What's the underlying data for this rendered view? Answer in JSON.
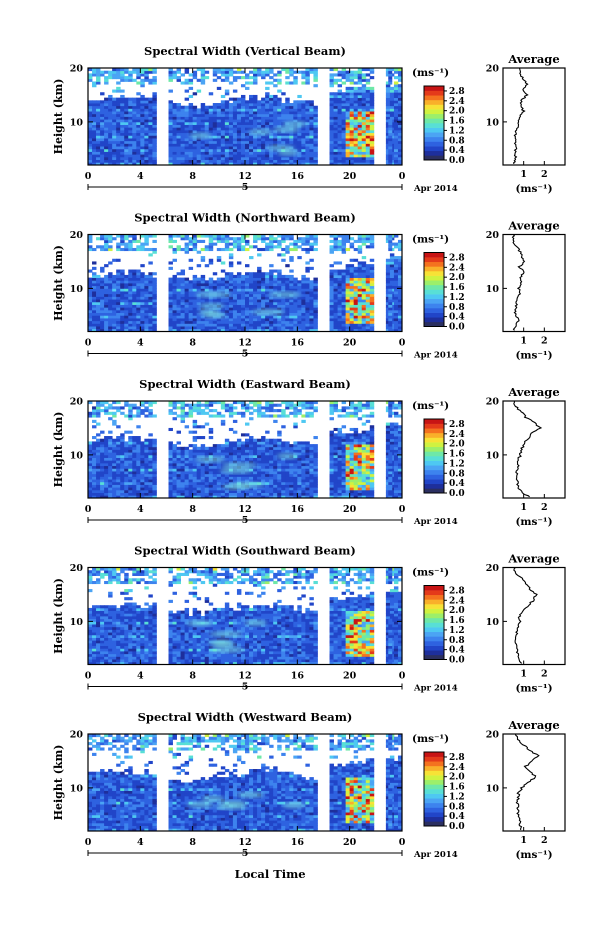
{
  "chart_data": {
    "type": "heatmap",
    "x_axis_label": "Local Time",
    "x_ticks": [
      "0",
      "4",
      "8",
      "12",
      "16",
      "20",
      "0"
    ],
    "date_day": "5",
    "date_month_year": "Apr 2014",
    "y_label": "Height (km)",
    "y_ticks": [
      "20",
      "10"
    ],
    "y_range_km": [
      2,
      20
    ],
    "x_range_hours": [
      0,
      24
    ],
    "colorbar": {
      "unit": "(ms⁻¹)",
      "ticks": [
        "2.8",
        "2.4",
        "2.0",
        "1.6",
        "1.2",
        "0.8",
        "0.4",
        "0.0"
      ],
      "range": [
        0,
        3.0
      ],
      "colors": [
        "#2b2f60",
        "#1e2f9c",
        "#2145c8",
        "#2e62e0",
        "#3d83ee",
        "#4ba4f4",
        "#4ec8f2",
        "#58dfd6",
        "#6ee8a8",
        "#9cef6a",
        "#d0f240",
        "#f7e236",
        "#f9b02a",
        "#f4721f",
        "#e43a1a",
        "#c81414"
      ]
    },
    "data_gaps_hours": [
      [
        5.3,
        6.0
      ],
      [
        17.6,
        18.2
      ],
      [
        22.0,
        22.6
      ]
    ],
    "average_title": "Average",
    "average_x_unit": "(ms⁻¹)",
    "panels": [
      {
        "title": "Spectral Width (Vertical Beam)",
        "avg_x_ticks": [
          "1",
          "2"
        ],
        "avg_profile": [
          [
            2.2,
            0.55
          ],
          [
            3,
            0.6
          ],
          [
            4,
            0.6
          ],
          [
            5,
            0.62
          ],
          [
            6,
            0.6
          ],
          [
            7,
            0.58
          ],
          [
            8,
            0.62
          ],
          [
            9,
            0.7
          ],
          [
            10,
            0.75
          ],
          [
            11,
            0.85
          ],
          [
            12,
            1.0
          ],
          [
            13,
            0.85
          ],
          [
            14,
            0.9
          ],
          [
            15,
            1.15
          ],
          [
            16,
            1.0
          ],
          [
            17,
            1.2
          ],
          [
            18,
            0.95
          ],
          [
            19,
            0.85
          ],
          [
            20,
            0.8
          ]
        ]
      },
      {
        "title": "Spectral Width (Northward Beam)",
        "avg_x_ticks": [
          "1",
          "2"
        ],
        "avg_profile": [
          [
            2.2,
            0.5
          ],
          [
            3,
            0.6
          ],
          [
            4,
            0.75
          ],
          [
            5,
            0.62
          ],
          [
            6,
            0.6
          ],
          [
            7,
            0.65
          ],
          [
            8,
            0.7
          ],
          [
            9,
            0.8
          ],
          [
            10,
            0.75
          ],
          [
            11,
            0.9
          ],
          [
            12,
            0.85
          ],
          [
            13,
            1.0
          ],
          [
            14,
            0.8
          ],
          [
            15,
            1.0
          ],
          [
            16,
            0.9
          ],
          [
            17,
            0.8
          ],
          [
            18,
            0.6
          ],
          [
            19,
            0.45
          ],
          [
            20,
            0.5
          ]
        ]
      },
      {
        "title": "Spectral Width (Eastward Beam)",
        "avg_x_ticks": [
          "1",
          "2"
        ],
        "avg_profile": [
          [
            2.2,
            1.3
          ],
          [
            3,
            0.9
          ],
          [
            4,
            0.75
          ],
          [
            5,
            0.7
          ],
          [
            6,
            0.7
          ],
          [
            7,
            0.68
          ],
          [
            8,
            0.75
          ],
          [
            9,
            0.7
          ],
          [
            10,
            0.85
          ],
          [
            11,
            0.9
          ],
          [
            12,
            1.0
          ],
          [
            13,
            1.2
          ],
          [
            14,
            1.4
          ],
          [
            15,
            1.8
          ],
          [
            16,
            1.5
          ],
          [
            17,
            1.1
          ],
          [
            18,
            0.9
          ],
          [
            19,
            0.6
          ],
          [
            20,
            0.55
          ]
        ]
      },
      {
        "title": "Spectral Width (Southward Beam)",
        "avg_x_ticks": [
          "1",
          "2"
        ],
        "avg_profile": [
          [
            2.2,
            0.9
          ],
          [
            3,
            0.8
          ],
          [
            4,
            0.7
          ],
          [
            5,
            0.7
          ],
          [
            6,
            0.65
          ],
          [
            7,
            0.6
          ],
          [
            8,
            0.68
          ],
          [
            9,
            0.7
          ],
          [
            10,
            0.8
          ],
          [
            11,
            0.8
          ],
          [
            12,
            1.0
          ],
          [
            13,
            1.2
          ],
          [
            14,
            1.5
          ],
          [
            15,
            1.6
          ],
          [
            16,
            1.3
          ],
          [
            17,
            1.1
          ],
          [
            18,
            0.9
          ],
          [
            19,
            0.55
          ],
          [
            20,
            0.6
          ]
        ]
      },
      {
        "title": "Spectral Width (Westward Beam)",
        "avg_x_ticks": [
          "1",
          "2"
        ],
        "avg_profile": [
          [
            2.2,
            0.9
          ],
          [
            3,
            0.85
          ],
          [
            4,
            0.8
          ],
          [
            5,
            0.75
          ],
          [
            6,
            0.7
          ],
          [
            7,
            0.7
          ],
          [
            8,
            0.72
          ],
          [
            9,
            0.75
          ],
          [
            10,
            0.9
          ],
          [
            11,
            1.2
          ],
          [
            12,
            1.6
          ],
          [
            13,
            1.3
          ],
          [
            14,
            1.1
          ],
          [
            15,
            1.4
          ],
          [
            16,
            1.7
          ],
          [
            17,
            1.3
          ],
          [
            18,
            1.0
          ],
          [
            19,
            0.7
          ],
          [
            20,
            0.6
          ]
        ]
      }
    ]
  }
}
